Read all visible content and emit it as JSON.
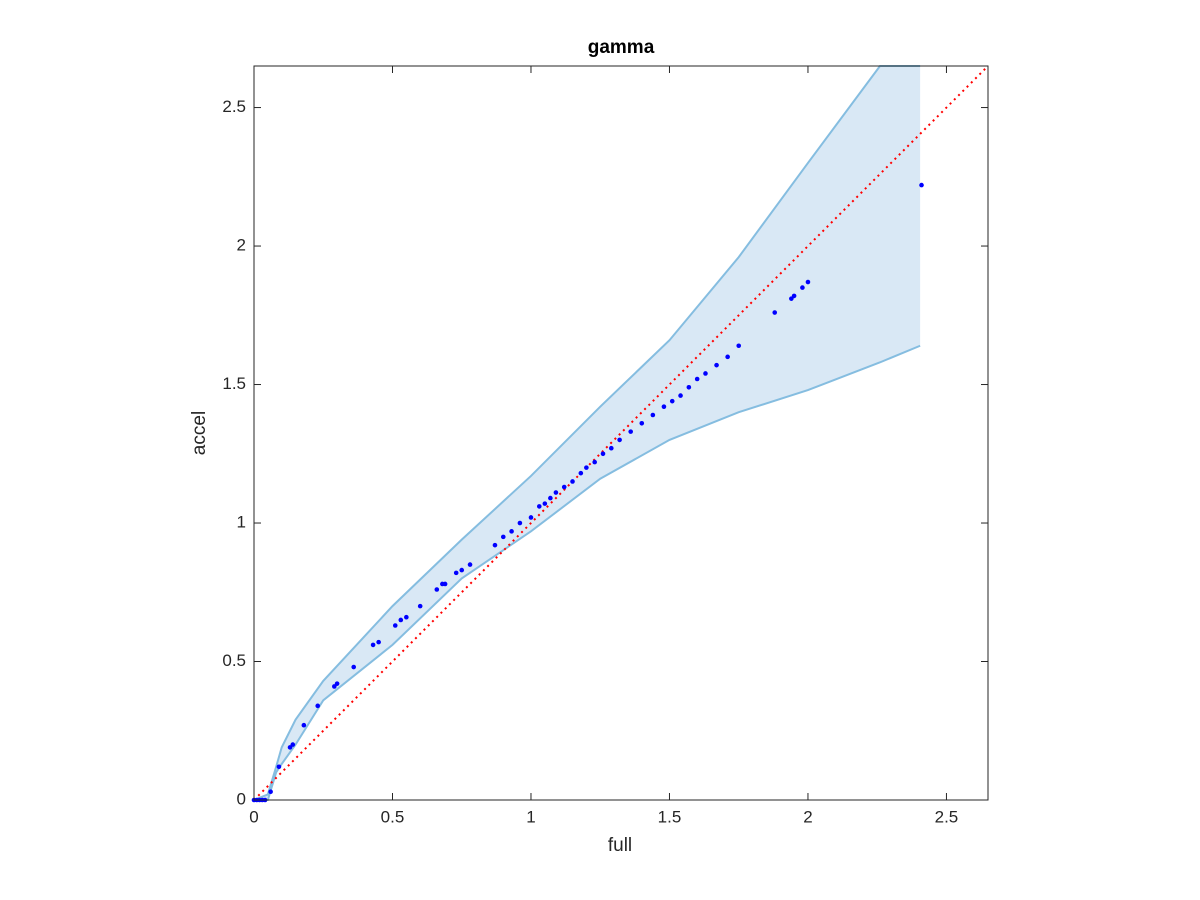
{
  "chart_data": {
    "type": "scatter",
    "title": "gamma",
    "x_label": "full",
    "y_label": "accel",
    "x": [
      0,
      0.01,
      0.02,
      0.03,
      0.04,
      0.06,
      0.09,
      0.13,
      0.14,
      0.18,
      0.23,
      0.29,
      0.3,
      0.36,
      0.43,
      0.45,
      0.51,
      0.53,
      0.55,
      0.6,
      0.66,
      0.68,
      0.69,
      0.73,
      0.75,
      0.78,
      0.87,
      0.9,
      0.93,
      0.96,
      1.0,
      1.03,
      1.05,
      1.07,
      1.09,
      1.12,
      1.15,
      1.18,
      1.2,
      1.23,
      1.26,
      1.29,
      1.32,
      1.36,
      1.4,
      1.44,
      1.48,
      1.51,
      1.54,
      1.57,
      1.6,
      1.63,
      1.67,
      1.71,
      1.75,
      1.88,
      1.94,
      1.95,
      1.98,
      2.0,
      2.41
    ],
    "values": [
      0,
      0,
      0,
      0,
      0,
      0.03,
      0.12,
      0.19,
      0.2,
      0.27,
      0.34,
      0.41,
      0.42,
      0.48,
      0.56,
      0.57,
      0.63,
      0.65,
      0.66,
      0.7,
      0.76,
      0.78,
      0.78,
      0.82,
      0.83,
      0.85,
      0.92,
      0.95,
      0.97,
      1.0,
      1.02,
      1.06,
      1.07,
      1.09,
      1.11,
      1.13,
      1.15,
      1.18,
      1.2,
      1.22,
      1.25,
      1.27,
      1.3,
      1.33,
      1.36,
      1.39,
      1.42,
      1.44,
      1.46,
      1.49,
      1.52,
      1.54,
      1.57,
      1.6,
      1.64,
      1.76,
      1.81,
      1.82,
      1.85,
      1.87,
      2.22
    ],
    "color": "#0000ff",
    "band": {
      "x": [
        0,
        0.05,
        0.08,
        0.1,
        0.15,
        0.25,
        0.5,
        0.75,
        1.0,
        1.25,
        1.5,
        1.75,
        2.0,
        2.26,
        2.405
      ],
      "upper": [
        0,
        0.02,
        0.12,
        0.19,
        0.29,
        0.43,
        0.7,
        0.94,
        1.17,
        1.42,
        1.66,
        1.96,
        2.3,
        2.65,
        2.65
      ],
      "lower": [
        0,
        0,
        0.1,
        0.13,
        0.2,
        0.36,
        0.56,
        0.8,
        0.97,
        1.16,
        1.3,
        1.4,
        1.48,
        1.58,
        1.64
      ],
      "color": "#d9e8f5",
      "edge_color": "#85bde0"
    },
    "reference_line": {
      "color": "#ff0000",
      "style": "dotted"
    },
    "xlim": [
      0,
      2.65
    ],
    "ylim": [
      0,
      2.65
    ],
    "xticks": [
      0,
      0.5,
      1,
      1.5,
      2,
      2.5
    ],
    "yticks": [
      0,
      0.5,
      1,
      1.5,
      2,
      2.5
    ]
  }
}
